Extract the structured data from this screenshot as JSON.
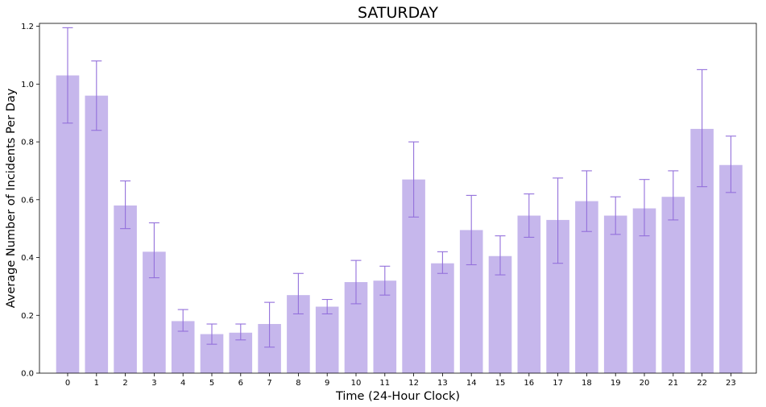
{
  "chart_data": {
    "type": "bar",
    "title": "SATURDAY",
    "xlabel": "Time (24-Hour Clock)",
    "ylabel": "Average Number of Incidents Per Day",
    "categories": [
      "0",
      "1",
      "2",
      "3",
      "4",
      "5",
      "6",
      "7",
      "8",
      "9",
      "10",
      "11",
      "12",
      "13",
      "14",
      "15",
      "16",
      "17",
      "18",
      "19",
      "20",
      "21",
      "22",
      "23"
    ],
    "values": [
      1.03,
      0.96,
      0.58,
      0.42,
      0.18,
      0.135,
      0.14,
      0.17,
      0.27,
      0.23,
      0.315,
      0.32,
      0.67,
      0.38,
      0.495,
      0.405,
      0.545,
      0.53,
      0.595,
      0.545,
      0.57,
      0.61,
      0.845,
      0.72
    ],
    "error_low": [
      0.865,
      0.84,
      0.5,
      0.33,
      0.145,
      0.1,
      0.115,
      0.09,
      0.205,
      0.205,
      0.24,
      0.27,
      0.54,
      0.345,
      0.375,
      0.34,
      0.47,
      0.38,
      0.49,
      0.48,
      0.475,
      0.53,
      0.645,
      0.625
    ],
    "error_high": [
      1.195,
      1.08,
      0.665,
      0.52,
      0.22,
      0.17,
      0.17,
      0.245,
      0.345,
      0.255,
      0.39,
      0.37,
      0.8,
      0.42,
      0.615,
      0.475,
      0.62,
      0.675,
      0.7,
      0.61,
      0.67,
      0.7,
      1.05,
      0.82
    ],
    "ylim": [
      0,
      1.21
    ],
    "yticks": [
      "0.0",
      "0.2",
      "0.4",
      "0.6",
      "0.8",
      "1.0",
      "1.2"
    ],
    "grid": false,
    "colors": {
      "bar": "#c6b7ec",
      "error": "#9370db",
      "axis": "#000000"
    }
  }
}
